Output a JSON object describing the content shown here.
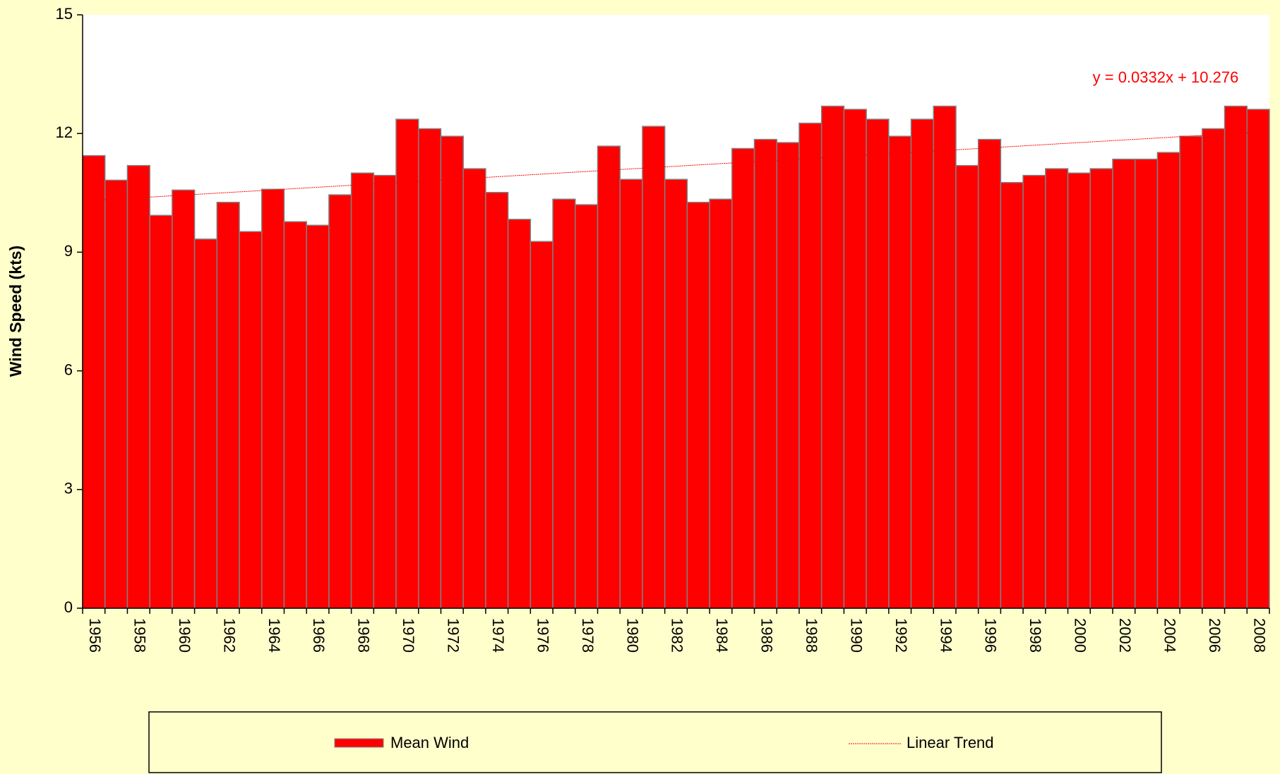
{
  "chart_data": {
    "type": "bar",
    "ylabel": "Wind Speed (kts)",
    "categories": [
      "1956",
      null,
      "1958",
      null,
      "1960",
      null,
      "1962",
      null,
      "1964",
      null,
      "1966",
      null,
      "1968",
      null,
      "1970",
      null,
      "1972",
      null,
      "1974",
      null,
      "1976",
      null,
      "1978",
      null,
      "1980",
      null,
      "1982",
      null,
      "1984",
      null,
      "1986",
      null,
      "1988",
      null,
      "1990",
      null,
      "1992",
      null,
      "1994",
      null,
      "1996",
      null,
      "1998",
      null,
      "2000",
      null,
      "2002",
      null,
      "2004",
      null,
      "2006",
      null,
      "2008"
    ],
    "series": [
      {
        "name": "Mean Wind",
        "color": "#ff0000",
        "values": [
          11.44,
          10.82,
          11.19,
          9.93,
          10.57,
          9.33,
          10.26,
          9.52,
          10.59,
          9.77,
          9.68,
          10.45,
          11.0,
          10.94,
          12.36,
          12.12,
          11.93,
          11.11,
          10.51,
          9.83,
          9.27,
          10.34,
          10.2,
          11.68,
          10.84,
          12.18,
          10.84,
          10.26,
          10.34,
          11.62,
          11.85,
          11.77,
          12.26,
          12.69,
          12.61,
          12.36,
          11.93,
          12.36,
          12.69,
          11.19,
          11.85,
          10.76,
          10.94,
          11.11,
          11.0,
          11.11,
          11.35,
          11.35,
          11.52,
          11.93,
          12.12,
          12.69,
          12.61
        ]
      }
    ],
    "trend": {
      "name": "Linear Trend",
      "color": "#ff0000",
      "slope": 0.0332,
      "intercept": 10.276
    },
    "annotation": "y = 0.0332x + 10.276",
    "ylim": [
      0,
      15
    ],
    "yticks": [
      0,
      3,
      6,
      9,
      12,
      15
    ],
    "grid": false
  }
}
